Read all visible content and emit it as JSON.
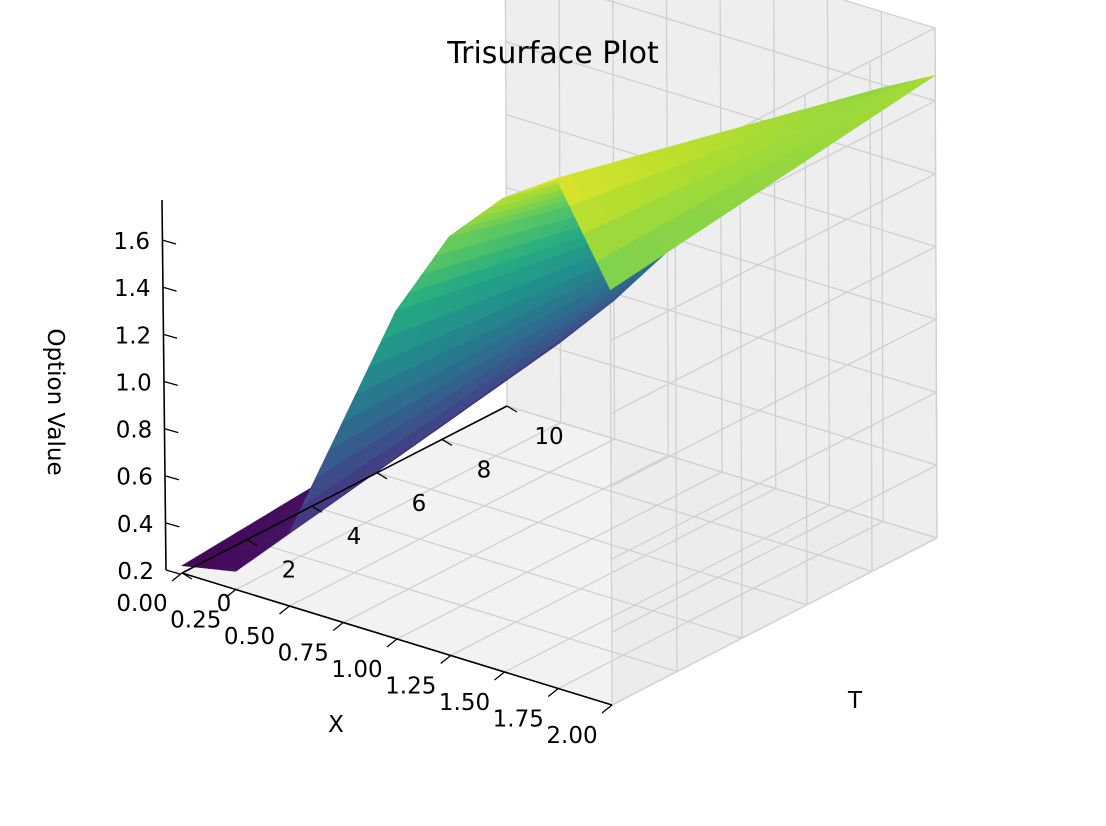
{
  "chart_data": {
    "type": "trisurface",
    "title": "Trisurface Plot",
    "xlabel": "X",
    "ylabel": "T",
    "zlabel": "Option Value",
    "xlim": [
      0.0,
      2.0
    ],
    "ylim": [
      0,
      10
    ],
    "zlim": [
      0.2,
      1.6
    ],
    "x_ticks": [
      "2.00",
      "1.75",
      "1.50",
      "1.25",
      "1.00",
      "0.75",
      "0.50",
      "0.25",
      "0.00"
    ],
    "y_ticks": [
      "0",
      "2",
      "4",
      "6",
      "8",
      "10"
    ],
    "z_ticks": [
      "1.6",
      "1.4",
      "1.2",
      "1.0",
      "0.8",
      "0.6",
      "0.4",
      "0.2"
    ],
    "colormap": "viridis",
    "colormap_colors": [
      "#440154",
      "#472c7a",
      "#3b518b",
      "#2c718e",
      "#21908d",
      "#27ad81",
      "#5cc863",
      "#aadc32",
      "#fde725"
    ],
    "surface_profile": {
      "x": [
        0.0,
        0.25,
        0.5,
        0.75,
        1.0,
        1.25,
        1.5,
        1.75,
        2.0
      ],
      "value_at_T0": [
        0.22,
        0.25,
        0.4,
        0.75,
        1.1,
        1.35,
        1.5,
        1.6,
        1.34
      ],
      "value_at_T10": [
        0.3,
        0.42,
        0.58,
        0.76,
        0.95,
        1.12,
        1.27,
        1.39,
        1.47
      ]
    },
    "grid": true,
    "pane_color": "#f2f2f2",
    "grid_color": "#d0d0d0"
  }
}
